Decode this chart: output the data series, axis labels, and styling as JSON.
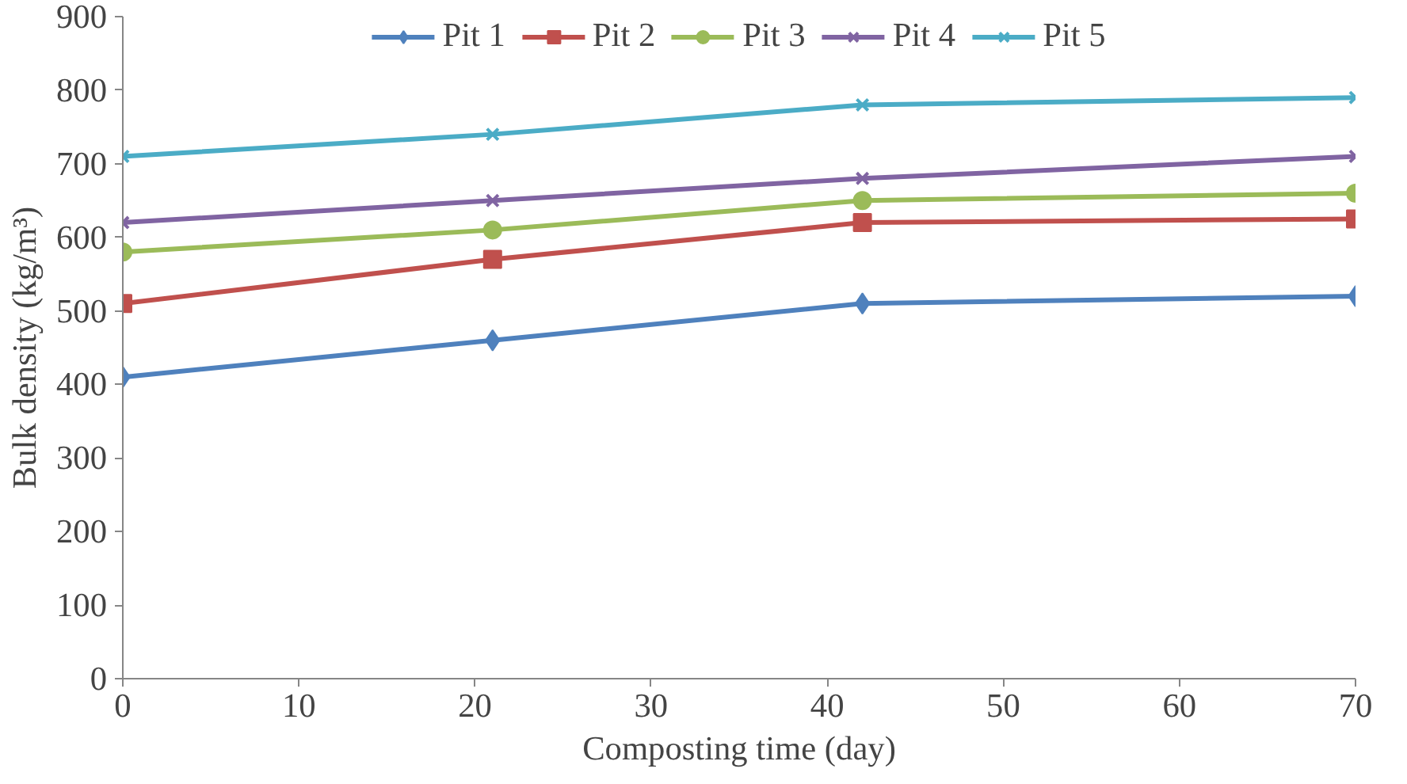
{
  "chart_data": {
    "type": "line",
    "xlabel": "Composting time (day)",
    "ylabel": "Bulk density (kg/m³)",
    "x": [
      0,
      21,
      42,
      70
    ],
    "series": [
      {
        "name": "Pit 1",
        "color": "#4f81bd",
        "marker": "diamond",
        "values": [
          410,
          460,
          510,
          520
        ]
      },
      {
        "name": "Pit 2",
        "color": "#c0504d",
        "marker": "square",
        "values": [
          510,
          570,
          620,
          625
        ]
      },
      {
        "name": "Pit 3",
        "color": "#9bbb59",
        "marker": "circle",
        "values": [
          580,
          610,
          650,
          660
        ]
      },
      {
        "name": "Pit 4",
        "color": "#8064a2",
        "marker": "cross",
        "values": [
          620,
          650,
          680,
          710
        ]
      },
      {
        "name": "Pit 5",
        "color": "#4bacc6",
        "marker": "cross",
        "values": [
          710,
          740,
          780,
          790
        ]
      }
    ],
    "xlim": [
      0,
      70
    ],
    "xticks": [
      0,
      10,
      20,
      30,
      40,
      50,
      60,
      70
    ],
    "ylim": [
      0,
      900
    ],
    "yticks": [
      0,
      100,
      200,
      300,
      400,
      500,
      600,
      700,
      800,
      900
    ],
    "grid": false,
    "legend": "top",
    "line_style": "solid"
  }
}
